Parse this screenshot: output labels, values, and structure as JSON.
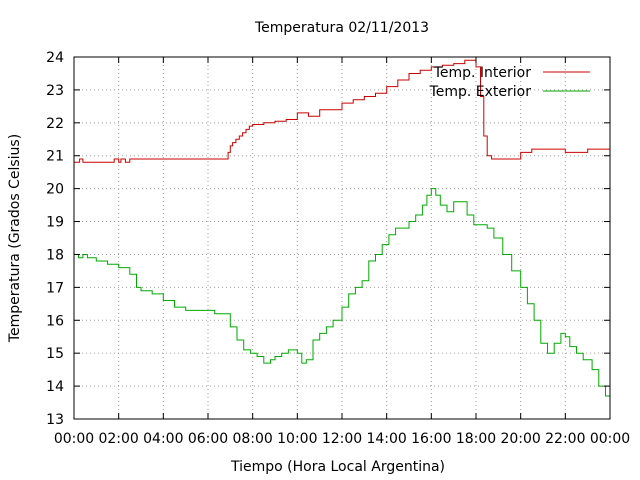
{
  "chart_data": {
    "type": "line",
    "title": "Temperatura 02/11/2013",
    "xlabel": "Tiempo (Hora Local Argentina)",
    "ylabel": "Temperatura (Grados Celsius)",
    "xlim": [
      0,
      24
    ],
    "ylim": [
      13,
      24
    ],
    "x_tick_labels": [
      "00:00",
      "02:00",
      "04:00",
      "06:00",
      "08:00",
      "10:00",
      "12:00",
      "14:00",
      "16:00",
      "18:00",
      "20:00",
      "22:00",
      "00:00"
    ],
    "y_tick_labels": [
      "13",
      "14",
      "15",
      "16",
      "17",
      "18",
      "19",
      "20",
      "21",
      "22",
      "23",
      "24"
    ],
    "grid": true,
    "legend_position": "top-right",
    "series": [
      {
        "name": "Temp. Interior",
        "color": "#cc0000",
        "x": [
          0,
          0.25,
          0.4,
          0.5,
          1,
          1.5,
          1.8,
          2.0,
          2.1,
          2.3,
          2.5,
          3,
          4,
          5,
          6,
          6.8,
          6.9,
          7.0,
          7.1,
          7.25,
          7.4,
          7.55,
          7.7,
          7.85,
          8.0,
          8.5,
          9.0,
          9.5,
          10.0,
          10.5,
          11.0,
          11.5,
          12.0,
          12.5,
          13.0,
          13.5,
          14.0,
          14.5,
          15.0,
          15.5,
          16.0,
          16.5,
          17.0,
          17.5,
          17.8,
          18.0,
          18.2,
          18.35,
          18.5,
          18.7,
          19.0,
          19.5,
          20.0,
          20.5,
          21.0,
          21.5,
          22.0,
          22.5,
          23.0,
          23.5,
          24.0
        ],
        "y": [
          20.8,
          20.9,
          20.8,
          20.8,
          20.8,
          20.8,
          20.9,
          20.8,
          20.9,
          20.8,
          20.9,
          20.9,
          20.9,
          20.9,
          20.9,
          20.9,
          21.1,
          21.3,
          21.4,
          21.5,
          21.6,
          21.7,
          21.8,
          21.9,
          21.95,
          22.0,
          22.05,
          22.1,
          22.3,
          22.2,
          22.4,
          22.4,
          22.6,
          22.7,
          22.8,
          22.9,
          23.1,
          23.3,
          23.5,
          23.6,
          23.7,
          23.75,
          23.8,
          23.9,
          23.9,
          23.7,
          22.8,
          21.6,
          21.0,
          20.9,
          20.9,
          20.9,
          21.1,
          21.2,
          21.2,
          21.2,
          21.1,
          21.1,
          21.2,
          21.2,
          21.2
        ]
      },
      {
        "name": "Temp. Exterior",
        "color": "#00aa00",
        "x": [
          0,
          0.2,
          0.4,
          0.6,
          1.0,
          1.5,
          2.0,
          2.5,
          2.8,
          3.0,
          3.5,
          4.0,
          4.5,
          5.0,
          5.5,
          6.0,
          6.3,
          6.6,
          7.0,
          7.3,
          7.6,
          7.9,
          8.2,
          8.5,
          8.8,
          9.0,
          9.3,
          9.6,
          10.0,
          10.2,
          10.4,
          10.7,
          11.0,
          11.3,
          11.6,
          12.0,
          12.3,
          12.6,
          12.9,
          13.2,
          13.5,
          13.8,
          14.1,
          14.4,
          14.7,
          15.0,
          15.3,
          15.6,
          15.8,
          16.0,
          16.2,
          16.4,
          16.7,
          17.0,
          17.3,
          17.6,
          17.9,
          18.2,
          18.5,
          18.8,
          19.2,
          19.6,
          20.0,
          20.3,
          20.6,
          20.9,
          21.2,
          21.5,
          21.8,
          22.0,
          22.2,
          22.5,
          22.8,
          23.2,
          23.5,
          23.8,
          24.0
        ],
        "y": [
          18.0,
          17.9,
          18.0,
          17.9,
          17.8,
          17.7,
          17.6,
          17.4,
          17.0,
          16.9,
          16.8,
          16.6,
          16.4,
          16.3,
          16.3,
          16.3,
          16.2,
          16.2,
          15.8,
          15.4,
          15.1,
          15.0,
          14.9,
          14.7,
          14.8,
          14.9,
          15.0,
          15.1,
          15.0,
          14.7,
          14.8,
          15.4,
          15.6,
          15.8,
          16.0,
          16.4,
          16.8,
          17.0,
          17.2,
          17.8,
          18.0,
          18.3,
          18.6,
          18.8,
          18.8,
          19.0,
          19.2,
          19.5,
          19.8,
          20.0,
          19.8,
          19.5,
          19.3,
          19.6,
          19.6,
          19.2,
          18.9,
          18.9,
          18.8,
          18.5,
          18.0,
          17.5,
          17.0,
          16.5,
          16.0,
          15.3,
          15.0,
          15.3,
          15.6,
          15.5,
          15.2,
          15.0,
          14.8,
          14.5,
          14.0,
          13.7,
          13.6
        ]
      }
    ]
  }
}
